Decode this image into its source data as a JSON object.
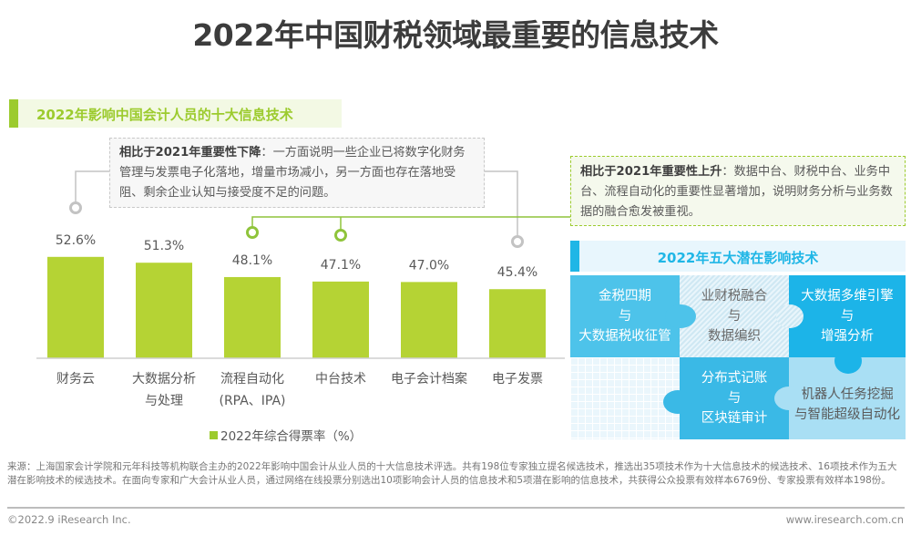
{
  "title": "2022年中国财税领域最重要的信息技术",
  "left_section": {
    "title": "2022年影响中国会计人员的十大信息技术",
    "accent": "#9ccb2e"
  },
  "callout_down": {
    "bold": "相比于2021年重要性下降",
    "text": "：一方面说明一些企业已将数字化财务管理与发票电子化落地，增量市场减小，另一方面也存在落地受阻、剩余企业认知与接受度不足的问题。"
  },
  "callout_up": {
    "bold": "相比于2021年重要性上升",
    "text": "：数据中台、财税中台、业务中台、流程自动化的重要性显著增加，说明财务分析与业务数据的融合愈发被重视。"
  },
  "chart_data": {
    "type": "bar",
    "title": "2022年影响中国会计人员的十大信息技术",
    "categories": [
      [
        "财务云"
      ],
      [
        "大数据分析",
        "与处理"
      ],
      [
        "流程自动化",
        "(RPA、IPA)"
      ],
      [
        "中台技术"
      ],
      [
        "电子会计档案"
      ],
      [
        "电子发票"
      ]
    ],
    "values": [
      52.6,
      51.3,
      48.1,
      47.1,
      47.0,
      45.4
    ],
    "value_labels": [
      "52.6%",
      "51.3%",
      "48.1%",
      "47.1%",
      "47.0%",
      "45.4%"
    ],
    "series_name": "2022年综合得票率（%）",
    "xlabel": "",
    "ylabel": "",
    "grid": false,
    "legend": "bottom-center",
    "bar_color": "#b5d334",
    "markers": {
      "decline": [
        0,
        5
      ],
      "rise": [
        2,
        3
      ]
    }
  },
  "potential": {
    "title": "2022年五大潜在影响技术",
    "accent": "#1fb6e6",
    "items": [
      [
        "金税四期",
        "与",
        "大数据税收征管"
      ],
      [
        "业财税融合",
        "与",
        "数据编织"
      ],
      [
        "大数据多维引擎",
        "与",
        "增强分析"
      ],
      [
        "分布式记账",
        "与",
        "区块链审计"
      ],
      [
        "机器人任务挖掘",
        "与智能超级自动化"
      ]
    ]
  },
  "footer": {
    "source": "来源：上海国家会计学院和元年科技等机构联合主办的2022年影响中国会计从业人员的十大信息技术评选。共有198位专家独立提名候选技术，推选出35项技术作为十大信息技术的候选技术、16项技术作为五大潜在影响技术的候选技术。在面向专家和广大会计从业人员，通过网络在线投票分别选出10项影响会计人员的信息技术和5项潜在影响的信息技术，共获得公众投票有效样本6769份、专家投票有效样本198份。",
    "copyright": "©2022.9 iResearch Inc.",
    "website": "www.iresearch.com.cn"
  }
}
